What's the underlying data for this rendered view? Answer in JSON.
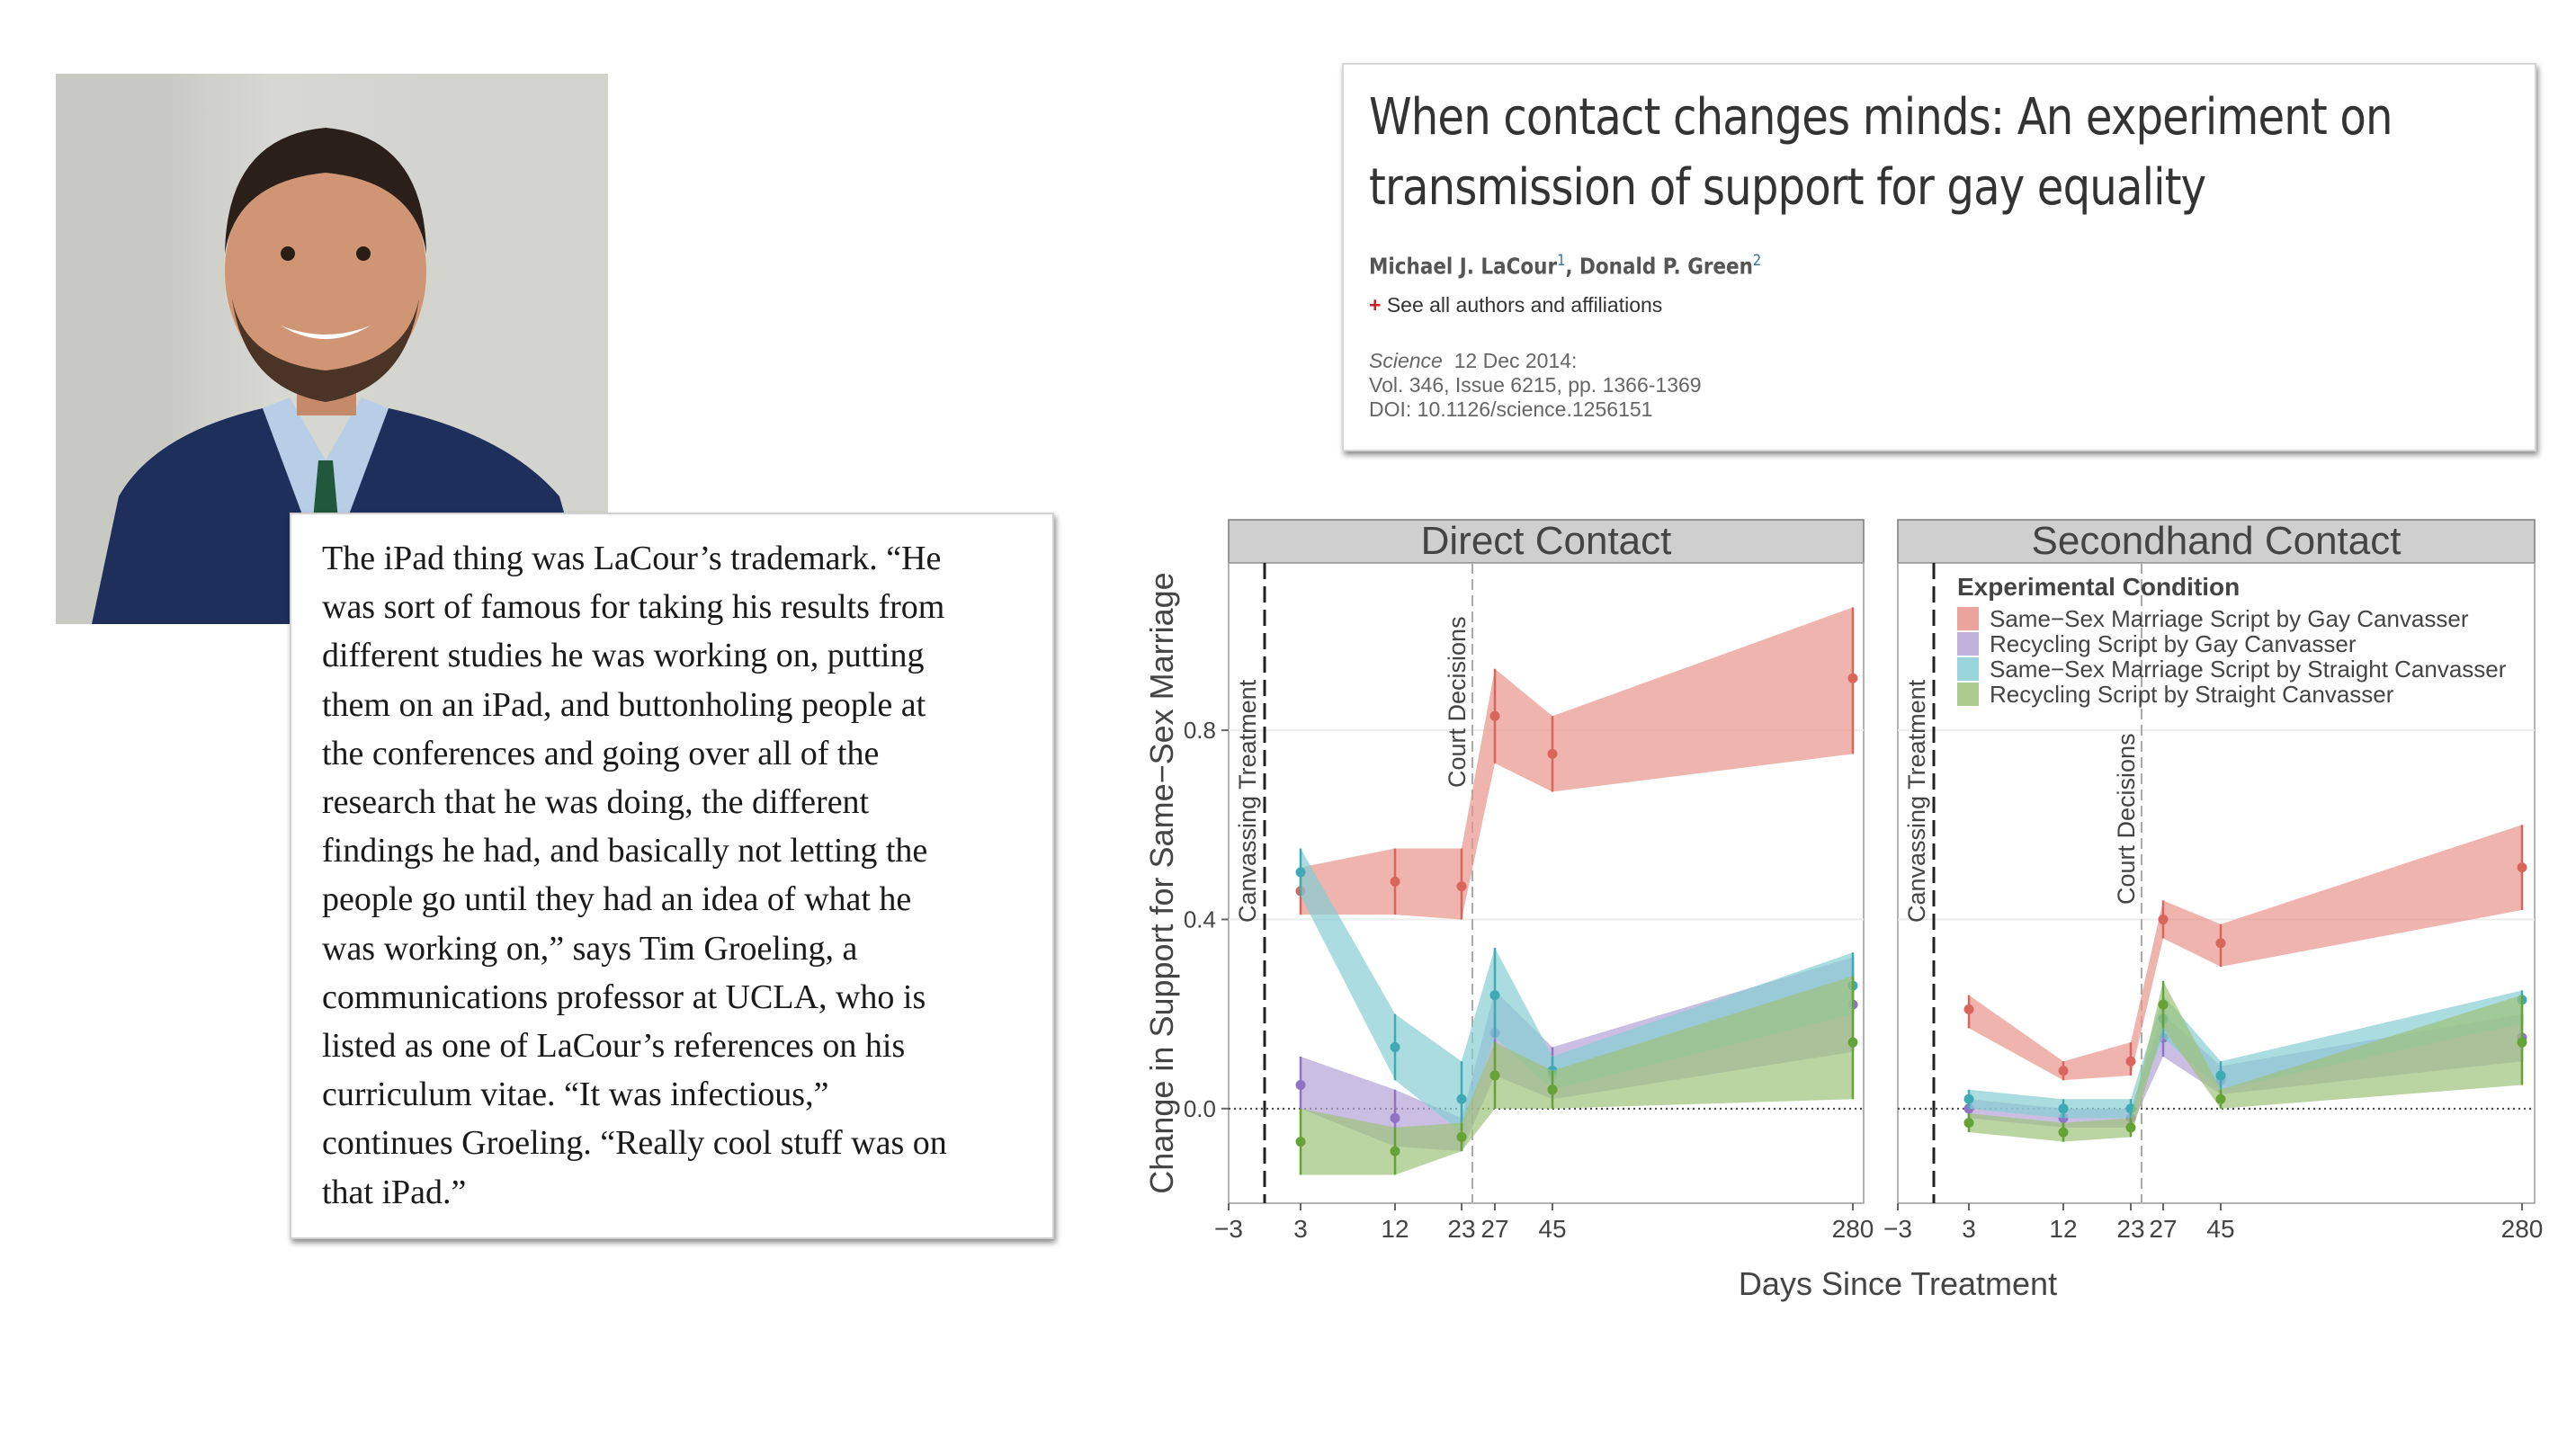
{
  "quote": {
    "lines": [
      "The iPad thing was LaCour’s trademark. “He",
      "was sort of famous for taking his results from",
      "different studies he was working on, putting",
      "them on an iPad, and buttonholing people at",
      "the conferences and going over all of the",
      "research that he was doing, the different",
      "findings he had, and basically not letting the",
      "people go until they had an idea of what he",
      "was working on,” says Tim Groeling, a",
      "communications professor at UCLA, who is",
      "listed as one of LaCour’s references on his",
      "curriculum vitae. “It was infectious,”",
      "continues Groeling. “Really cool stuff was on",
      "that iPad.”"
    ]
  },
  "paper": {
    "title_line1": "When contact changes minds: An experiment on",
    "title_line2": "transmission of support for gay equality",
    "author1": "Michael J. LaCour",
    "author1_sup": "1",
    "author_sep": ", ",
    "author2": "Donald P. Green",
    "author2_sup": "2",
    "see_all_plus": "+",
    "see_all": "See all authors and affiliations",
    "journal": "Science",
    "date": "12 Dec 2014:",
    "volume": "Vol. 346, Issue 6215, pp. 1366-1369",
    "doi": "DOI: 10.1126/science.1256151"
  },
  "chart_data": {
    "type": "area",
    "ylabel": "Change in Support for Same−Sex Marriage",
    "xlabel": "Days Since Treatment",
    "x_ticks": [
      "−3",
      "3",
      "12",
      "23",
      "27",
      "45",
      "280"
    ],
    "y_ticks": [
      "0.0",
      "0.4",
      "0.8"
    ],
    "x_positions": [
      -3,
      3,
      12,
      23,
      27,
      45,
      280
    ],
    "ylim": [
      -0.2,
      1.15
    ],
    "legend_title": "Experimental Condition",
    "legend_position": "top",
    "annotations": {
      "canvassing": "Canvassing Treatment",
      "court": "Court Decisions"
    },
    "series_colors": [
      "#e8948a",
      "#b4a3d6",
      "#86cdd3",
      "#9cc27a"
    ],
    "series_point_colors": [
      "#d9665a",
      "#8f73c4",
      "#3fa9b5",
      "#66a336"
    ],
    "panels": [
      {
        "title": "Direct Contact",
        "series": [
          {
            "name": "Same−Sex Marriage Script by Gay Canvasser",
            "mean": [
              0.46,
              0.48,
              0.47,
              0.83,
              0.75,
              0.91
            ],
            "lower": [
              0.41,
              0.41,
              0.4,
              0.73,
              0.67,
              0.75
            ],
            "upper": [
              0.51,
              0.55,
              0.55,
              0.93,
              0.83,
              1.06
            ]
          },
          {
            "name": "Recycling Script by Gay Canvasser",
            "mean": [
              0.05,
              -0.02,
              -0.06,
              0.16,
              0.07,
              0.22
            ],
            "lower": [
              0.0,
              -0.08,
              -0.09,
              0.07,
              0.02,
              0.12
            ],
            "upper": [
              0.11,
              0.04,
              -0.02,
              0.25,
              0.13,
              0.32
            ]
          },
          {
            "name": "Same−Sex Marriage Script by Straight Canvasser",
            "mean": [
              0.5,
              0.13,
              0.02,
              0.24,
              0.08,
              0.26
            ],
            "lower": [
              0.45,
              0.06,
              -0.05,
              0.15,
              0.04,
              0.2
            ],
            "upper": [
              0.55,
              0.2,
              0.1,
              0.34,
              0.11,
              0.33
            ]
          },
          {
            "name": "Recycling Script by Straight Canvasser",
            "mean": [
              -0.07,
              -0.09,
              -0.06,
              0.07,
              0.04,
              0.14
            ],
            "lower": [
              -0.14,
              -0.14,
              -0.09,
              0.0,
              0.0,
              0.02
            ],
            "upper": [
              0.0,
              -0.04,
              -0.03,
              0.14,
              0.08,
              0.28
            ]
          }
        ]
      },
      {
        "title": "Secondhand Contact",
        "series": [
          {
            "name": "Same−Sex Marriage Script by Gay Canvasser",
            "mean": [
              0.21,
              0.08,
              0.1,
              0.4,
              0.35,
              0.51
            ],
            "lower": [
              0.17,
              0.06,
              0.07,
              0.36,
              0.3,
              0.42
            ],
            "upper": [
              0.24,
              0.1,
              0.14,
              0.44,
              0.39,
              0.6
            ]
          },
          {
            "name": "Recycling Script by Gay Canvasser",
            "mean": [
              0.0,
              -0.02,
              -0.02,
              0.15,
              0.06,
              0.15
            ],
            "lower": [
              -0.02,
              -0.04,
              -0.04,
              0.11,
              0.03,
              0.1
            ],
            "upper": [
              0.02,
              0.0,
              0.0,
              0.2,
              0.09,
              0.2
            ]
          },
          {
            "name": "Same−Sex Marriage Script by Straight Canvasser",
            "mean": [
              0.02,
              0.0,
              0.0,
              0.19,
              0.07,
              0.23
            ],
            "lower": [
              0.0,
              -0.02,
              -0.02,
              0.15,
              0.04,
              0.18
            ],
            "upper": [
              0.04,
              0.02,
              0.02,
              0.24,
              0.1,
              0.25
            ]
          },
          {
            "name": "Recycling Script by Straight Canvasser",
            "mean": [
              -0.03,
              -0.05,
              -0.04,
              0.22,
              0.02,
              0.14
            ],
            "lower": [
              -0.05,
              -0.07,
              -0.06,
              0.17,
              0.0,
              0.05
            ],
            "upper": [
              -0.01,
              -0.03,
              -0.02,
              0.27,
              0.04,
              0.24
            ]
          }
        ]
      }
    ]
  }
}
